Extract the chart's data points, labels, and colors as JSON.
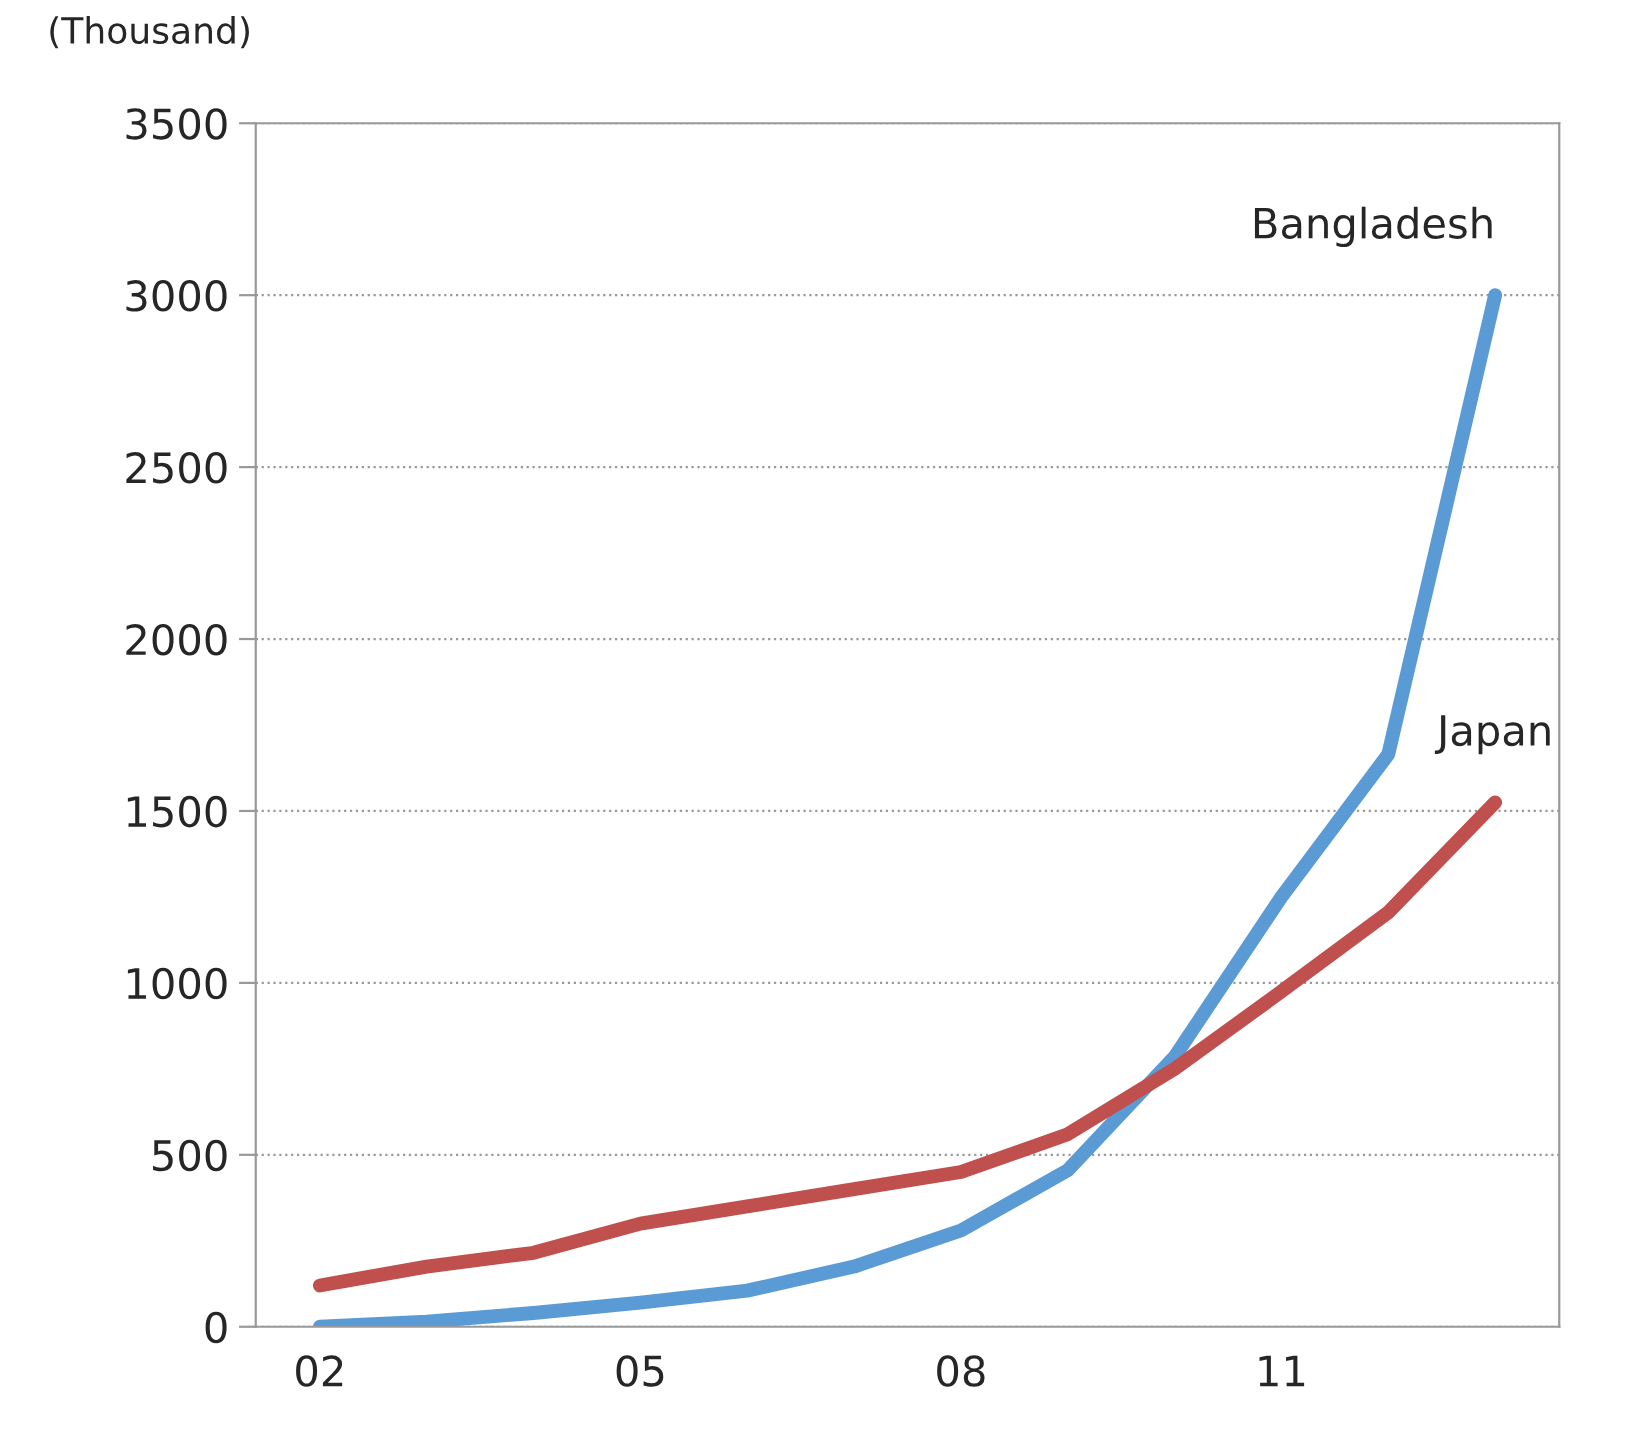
{
  "chart_data": {
    "type": "line",
    "ylabel": "(Thousand)",
    "categories": [
      "02",
      null,
      null,
      "05",
      null,
      null,
      "08",
      null,
      null,
      "11",
      null,
      null
    ],
    "series": [
      {
        "name": "Bangladesh",
        "color": "#5b9bd5",
        "values": [
          0,
          15,
          40,
          70,
          105,
          175,
          280,
          455,
          785,
          1250,
          1665,
          3000
        ]
      },
      {
        "name": "Japan",
        "color": "#c0504d",
        "values": [
          120,
          175,
          215,
          300,
          350,
          400,
          450,
          560,
          750,
          975,
          1205,
          1525
        ]
      }
    ],
    "ylim": [
      0,
      3500
    ],
    "yticks": [
      0,
      500,
      1000,
      1500,
      2000,
      2500,
      3000,
      3500
    ],
    "grid": "y",
    "legend": false,
    "marker": "none",
    "line_style": "solid"
  }
}
